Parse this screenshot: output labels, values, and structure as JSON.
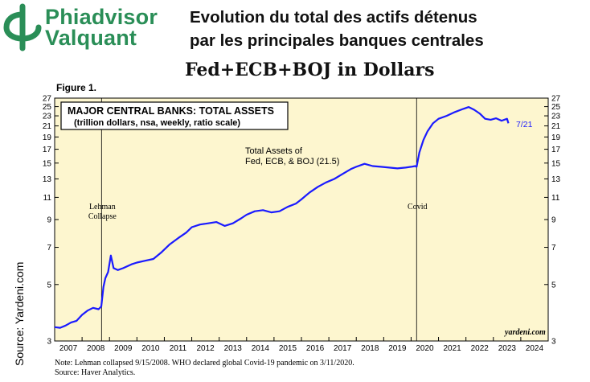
{
  "header": {
    "logo_line1": "Phiadvisor",
    "logo_line2": "Valquant",
    "headline_line1": "Evolution du total des actifs détenus",
    "headline_line2": "par les principales banques centrales",
    "headline_line3": "Fed+ECB+BOJ in Dollars"
  },
  "source_vertical": "Source: Yardeni.com",
  "colors": {
    "brand": "#2a8e57",
    "plot_bg": "#fdf6cf",
    "line": "#1a1aff"
  },
  "chart_data": {
    "type": "line",
    "figure_label": "Figure 1.",
    "box_title": "MAJOR CENTRAL BANKS: TOTAL ASSETS",
    "box_subtitle": "(trillion dollars, nsa, weekly, ratio scale)",
    "series_label_line1": "Total Assets of",
    "series_label_line2": "Fed, ECB, & BOJ (21.5)",
    "end_label": "7/21",
    "watermark": "yardeni.com",
    "y_scale": "log",
    "ylim": [
      3,
      27
    ],
    "y_ticks": [
      3,
      5,
      7,
      9,
      11,
      13,
      15,
      17,
      19,
      21,
      23,
      25,
      27
    ],
    "x_range": [
      2007.0,
      2025.0
    ],
    "years": [
      "2007",
      "2008",
      "2009",
      "2010",
      "2011",
      "2012",
      "2013",
      "2014",
      "2015",
      "2016",
      "2017",
      "2018",
      "2019",
      "2020",
      "2021",
      "2022",
      "2023",
      "2024"
    ],
    "events": [
      {
        "x": 2008.71,
        "line1": "Lehman",
        "line2": "Collapse"
      },
      {
        "x": 2020.2,
        "line1": "Covid",
        "line2": ""
      }
    ],
    "series": [
      {
        "x": [
          2007.0,
          2007.2,
          2007.4,
          2007.6,
          2007.8,
          2008.0,
          2008.2,
          2008.4,
          2008.6,
          2008.7,
          2008.78,
          2008.85,
          2008.95,
          2009.05,
          2009.15,
          2009.3,
          2009.5,
          2009.8,
          2010.0,
          2010.3,
          2010.6,
          2010.9,
          2011.2,
          2011.5,
          2011.8,
          2012.0,
          2012.3,
          2012.6,
          2012.9,
          2013.2,
          2013.5,
          2013.8,
          2014.0,
          2014.3,
          2014.6,
          2014.9,
          2015.2,
          2015.5,
          2015.8,
          2016.0,
          2016.3,
          2016.6,
          2016.9,
          2017.2,
          2017.5,
          2017.8,
          2018.0,
          2018.3,
          2018.6,
          2018.9,
          2019.2,
          2019.5,
          2019.8,
          2020.0,
          2020.15,
          2020.2,
          2020.3,
          2020.45,
          2020.6,
          2020.8,
          2021.0,
          2021.3,
          2021.6,
          2021.9,
          2022.1,
          2022.3,
          2022.5,
          2022.7,
          2022.9,
          2023.1,
          2023.3,
          2023.5,
          2023.55
        ],
        "values": [
          3.4,
          3.38,
          3.45,
          3.55,
          3.6,
          3.8,
          3.95,
          4.05,
          4.0,
          4.1,
          4.9,
          5.3,
          5.6,
          6.5,
          5.8,
          5.7,
          5.8,
          6.0,
          6.1,
          6.2,
          6.3,
          6.7,
          7.2,
          7.6,
          8.0,
          8.4,
          8.6,
          8.7,
          8.8,
          8.5,
          8.7,
          9.1,
          9.4,
          9.7,
          9.8,
          9.6,
          9.7,
          10.1,
          10.4,
          10.8,
          11.5,
          12.1,
          12.6,
          13.0,
          13.6,
          14.2,
          14.5,
          14.9,
          14.6,
          14.5,
          14.4,
          14.3,
          14.4,
          14.5,
          14.6,
          14.5,
          16.5,
          18.5,
          20.0,
          21.5,
          22.4,
          23.0,
          23.8,
          24.5,
          24.9,
          24.3,
          23.5,
          22.4,
          22.2,
          22.5,
          22.0,
          22.4,
          21.5
        ]
      }
    ],
    "notes_line1": "Note: Lehman collapsed 9/15/2008. WHO declared global Covid-19 pandemic on 3/11/2020.",
    "notes_line2": "Source: Haver Analytics."
  }
}
